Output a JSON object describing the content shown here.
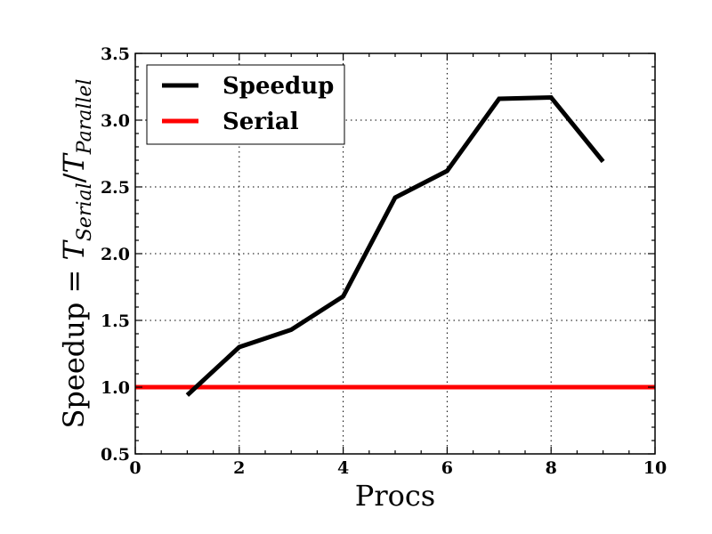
{
  "chart_data": {
    "type": "line",
    "xlabel": "Procs",
    "ylabel": {
      "prefix": "Speedup = ",
      "t1": "T",
      "sub1": "Serial",
      "slash": "/",
      "t2": "T",
      "sub2": "Parallel"
    },
    "xlim": [
      0,
      10
    ],
    "ylim": [
      0.5,
      3.5
    ],
    "x_ticks": [
      0,
      2,
      4,
      6,
      8,
      10
    ],
    "x_tick_labels": [
      "0",
      "2",
      "4",
      "6",
      "8",
      "10"
    ],
    "y_ticks": [
      0.5,
      1.0,
      1.5,
      2.0,
      2.5,
      3.0,
      3.5
    ],
    "y_tick_labels": [
      "0.5",
      "1.0",
      "1.5",
      "2.0",
      "2.5",
      "3.0",
      "3.5"
    ],
    "grid": true,
    "legend_position": "top-left",
    "series": [
      {
        "name": "Speedup",
        "color": "#000000",
        "x": [
          1,
          2,
          3,
          4,
          5,
          6,
          7,
          8,
          9
        ],
        "y": [
          0.94,
          1.3,
          1.43,
          1.68,
          2.42,
          2.62,
          3.16,
          3.17,
          2.69
        ]
      },
      {
        "name": "Serial",
        "color": "#ff0000",
        "x": [
          0,
          10
        ],
        "y": [
          1.0,
          1.0
        ]
      }
    ]
  }
}
